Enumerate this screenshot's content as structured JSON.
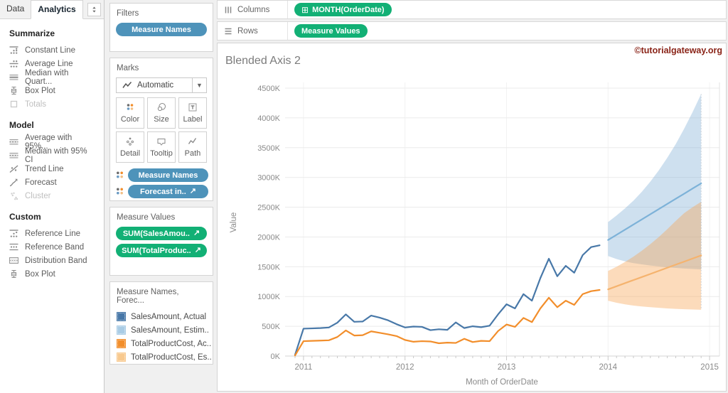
{
  "watermark": "©tutorialgateway.org",
  "colors": {
    "pill_green": "#12b075",
    "pill_blue": "#4e93ba",
    "watermark": "#8a2418",
    "sales_actual": "#4878a8",
    "sales_estimate": "#7db2d8",
    "cost_actual": "#f28e2b",
    "cost_estimate": "#f5b36e"
  },
  "sidebar": {
    "tabs": [
      {
        "label": "Data"
      },
      {
        "label": "Analytics"
      }
    ],
    "sections": [
      {
        "title": "Summarize",
        "items": [
          {
            "label": "Constant Line",
            "icon": "constant-line-icon",
            "disabled": false
          },
          {
            "label": "Average Line",
            "icon": "average-line-icon",
            "disabled": false
          },
          {
            "label": "Median with Quart...",
            "icon": "median-quartiles-icon",
            "disabled": false
          },
          {
            "label": "Box Plot",
            "icon": "box-plot-icon",
            "disabled": false
          },
          {
            "label": "Totals",
            "icon": "totals-icon",
            "disabled": true
          }
        ]
      },
      {
        "title": "Model",
        "items": [
          {
            "label": "Average with 95%...",
            "icon": "ci-band-icon",
            "disabled": false
          },
          {
            "label": "Median with 95% CI",
            "icon": "ci-band-icon",
            "disabled": false
          },
          {
            "label": "Trend Line",
            "icon": "trend-line-icon",
            "disabled": false
          },
          {
            "label": "Forecast",
            "icon": "forecast-icon",
            "disabled": false
          },
          {
            "label": "Cluster",
            "icon": "cluster-icon",
            "disabled": true
          }
        ]
      },
      {
        "title": "Custom",
        "items": [
          {
            "label": "Reference Line",
            "icon": "reference-line-icon",
            "disabled": false
          },
          {
            "label": "Reference Band",
            "icon": "reference-band-icon",
            "disabled": false
          },
          {
            "label": "Distribution Band",
            "icon": "distribution-band-icon",
            "disabled": false
          },
          {
            "label": "Box Plot",
            "icon": "box-plot-icon",
            "disabled": false
          }
        ]
      }
    ]
  },
  "filters_card": {
    "title": "Filters",
    "pills": [
      {
        "label": "Measure Names",
        "arrow": false
      }
    ]
  },
  "marks_card": {
    "title": "Marks",
    "mark_type_label": "Automatic",
    "buttons": [
      {
        "label": "Color",
        "icon": "color-icon"
      },
      {
        "label": "Size",
        "icon": "size-icon"
      },
      {
        "label": "Label",
        "icon": "label-icon"
      },
      {
        "label": "Detail",
        "icon": "detail-icon"
      },
      {
        "label": "Tooltip",
        "icon": "tooltip-icon"
      },
      {
        "label": "Path",
        "icon": "path-icon"
      }
    ],
    "pills": [
      {
        "label": "Measure Names",
        "arrow": false
      },
      {
        "label": "Forecast in..",
        "arrow": true
      }
    ]
  },
  "measure_values_card": {
    "title": "Measure Values",
    "pills": [
      {
        "label": "SUM(SalesAmou..",
        "arrow": true
      },
      {
        "label": "SUM(TotalProduc..",
        "arrow": true
      }
    ]
  },
  "legend_card": {
    "title": "Measure Names, Forec...",
    "items": [
      {
        "label": "SalesAmount, Actual",
        "color": "#4878a8"
      },
      {
        "label": "SalesAmount, Estim..",
        "color": "#a9cce5"
      },
      {
        "label": "TotalProductCost, Ac..",
        "color": "#f28e2b"
      },
      {
        "label": "TotalProductCost, Es..",
        "color": "#f8c98e"
      }
    ]
  },
  "shelves": {
    "columns": {
      "label": "Columns",
      "pill": {
        "label": "MONTH(OrderDate)",
        "prefix": "⊞"
      }
    },
    "rows": {
      "label": "Rows",
      "pill": {
        "label": "Measure Values",
        "prefix": ""
      }
    }
  },
  "chart_data": {
    "type": "line",
    "title": "Blended Axis 2",
    "xlabel": "Month of OrderDate",
    "ylabel": "Value",
    "unit": "K",
    "ylim_k": [
      0,
      4500
    ],
    "y_tick_step_k": 500,
    "x_ticks": [
      "2011",
      "2012",
      "2013",
      "2014",
      "2015"
    ],
    "x_year_tick_indices": [
      1,
      13,
      25,
      37,
      49
    ],
    "x_start": "2010-12",
    "grid": "horizontal",
    "series": [
      {
        "name": "SalesAmount, Actual",
        "color": "#4878a8",
        "start_index": 0,
        "values_k": [
          20,
          460,
          465,
          470,
          480,
          560,
          700,
          575,
          580,
          680,
          645,
          600,
          535,
          480,
          495,
          490,
          435,
          450,
          440,
          565,
          470,
          500,
          485,
          510,
          700,
          870,
          800,
          1040,
          930,
          1310,
          1635,
          1340,
          1515,
          1400,
          1695,
          1830,
          1860
        ]
      },
      {
        "name": "TotalProductCost, Actual",
        "color": "#f28e2b",
        "start_index": 0,
        "values_k": [
          10,
          250,
          255,
          260,
          265,
          320,
          430,
          345,
          350,
          415,
          390,
          365,
          335,
          270,
          240,
          250,
          245,
          215,
          225,
          220,
          290,
          235,
          255,
          250,
          420,
          530,
          490,
          640,
          570,
          800,
          980,
          820,
          930,
          860,
          1040,
          1090,
          1110
        ]
      },
      {
        "name": "SalesAmount, Estimate",
        "color": "#7db2d8",
        "start_index": 37,
        "band_color": "rgba(127,174,212,0.38)",
        "values_k": [
          1950,
          2036,
          2123,
          2209,
          2295,
          2382,
          2468,
          2555,
          2641,
          2727,
          2814,
          2900
        ],
        "band_top_k": [
          2250,
          2360,
          2480,
          2610,
          2760,
          2930,
          3120,
          3330,
          3560,
          3820,
          4100,
          4400
        ],
        "band_bottom_k": [
          1680,
          1630,
          1590,
          1560,
          1540,
          1520,
          1505,
          1490,
          1480,
          1470,
          1462,
          1455
        ]
      },
      {
        "name": "TotalProductCost, Estimate",
        "color": "#f5b36e",
        "start_index": 37,
        "band_color": "rgba(248,166,86,0.40)",
        "values_k": [
          1120,
          1172,
          1224,
          1276,
          1327,
          1379,
          1431,
          1483,
          1535,
          1586,
          1638,
          1690
        ],
        "band_top_k": [
          1430,
          1500,
          1580,
          1670,
          1770,
          1880,
          2000,
          2130,
          2270,
          2400,
          2500,
          2590
        ],
        "band_bottom_k": [
          930,
          895,
          868,
          848,
          832,
          820,
          810,
          800,
          793,
          787,
          782,
          778
        ]
      }
    ]
  }
}
